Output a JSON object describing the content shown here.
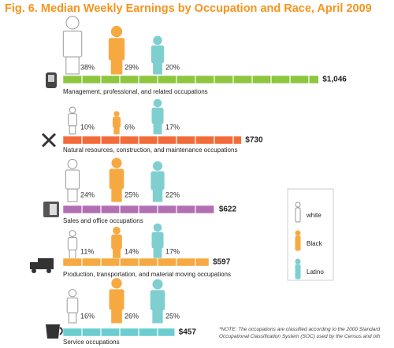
{
  "chart_data": {
    "type": "pictograph",
    "title": "Fig. 6. Median Weekly Earnings by Occupation and Race, April 2009",
    "categories": [
      "Management, professional, and related occupations",
      "Natural resources, construction, and maintenance occupations",
      "Sales and office occupations",
      "Production, transportation, and material moving occupations",
      "Service occupations"
    ],
    "series": [
      {
        "name": "white",
        "color": "#ffffff",
        "values": [
          38,
          10,
          24,
          11,
          16
        ],
        "value_labels": [
          "38%",
          "10%",
          "24%",
          "11%",
          "16%"
        ]
      },
      {
        "name": "Black",
        "color": "#f7a941",
        "values": [
          29,
          6,
          25,
          14,
          26
        ],
        "value_labels": [
          "29%",
          "6%",
          "25%",
          "14%",
          "26%"
        ]
      },
      {
        "name": "Latino",
        "color": "#7fcfd0",
        "values": [
          20,
          17,
          22,
          17,
          25
        ],
        "value_labels": [
          "20%",
          "17%",
          "22%",
          "17%",
          "25%"
        ]
      }
    ],
    "earnings": [
      1046,
      730,
      622,
      597,
      457
    ],
    "earnings_labels": [
      "$1,046",
      "$730",
      "$622",
      "$597",
      "$457"
    ],
    "earnings_colors": [
      "#8dc63f",
      "#f26b3a",
      "#b36fb3",
      "#f7a941",
      "#6ccdd0"
    ],
    "earnings_text_colors": [
      "#3a8a2e",
      "#e2231a",
      "#9b3f95",
      "#f7941d",
      "#2aa8c0"
    ],
    "note": "*NOTE: The occupations are classified according to the 2000 Standard Occupational Classification System (SOC) used by the Census and oth"
  }
}
